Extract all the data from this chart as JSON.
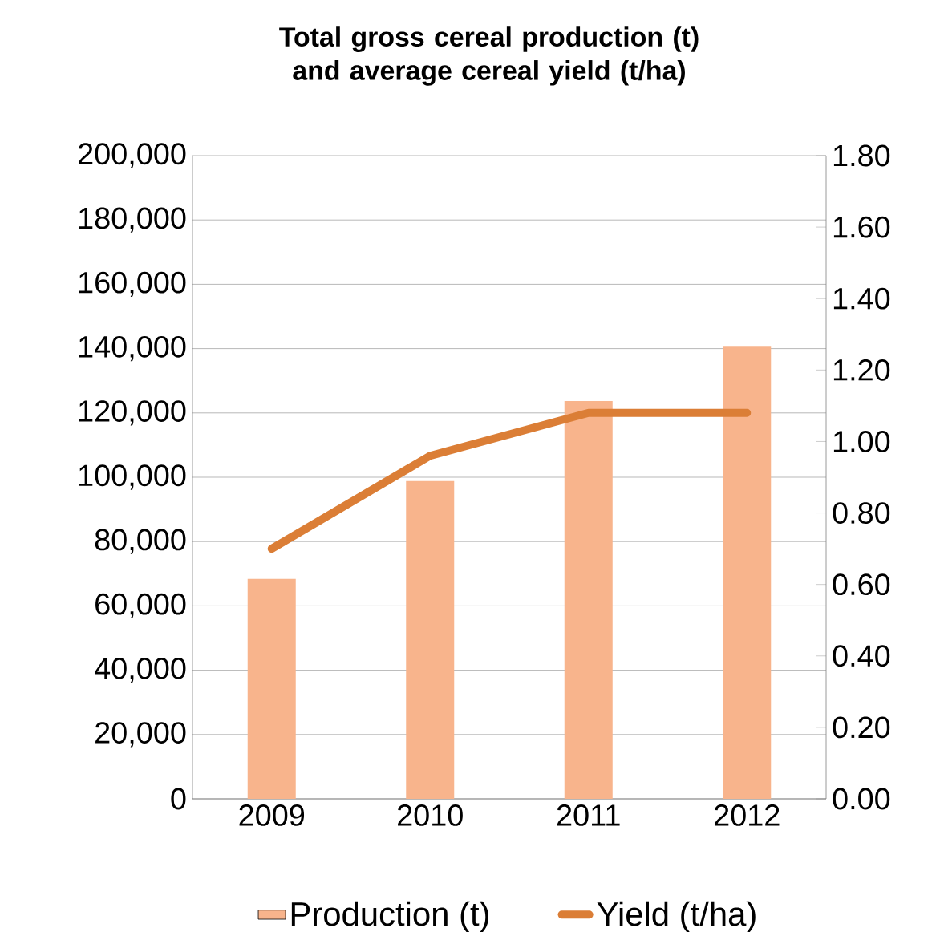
{
  "chart_data": {
    "type": "bar",
    "title": "Total gross cereal production (t) and average cereal yield (t/ha)",
    "categories": [
      "2009",
      "2010",
      "2011",
      "2012"
    ],
    "series": [
      {
        "name": "Production (t)",
        "color": "#f8b48c",
        "values": [
          68400,
          98800,
          123700,
          140600
        ]
      },
      {
        "name": "Yield (t/ha)",
        "type": "line",
        "axis": "y2",
        "color": "#db7e36",
        "line_style": "solid",
        "values": [
          0.7,
          0.96,
          1.08,
          1.08
        ]
      }
    ],
    "ylim": [
      0,
      200000
    ],
    "yticks": [
      0,
      {
        "value": 20000,
        "label": "20,000"
      },
      {
        "value": 40000,
        "label": "40,000"
      },
      {
        "value": 60000,
        "label": "60,000"
      },
      {
        "value": 80000,
        "label": "80,000"
      },
      {
        "value": 100000,
        "label": "100,000"
      },
      {
        "value": 120000,
        "label": "120,000"
      },
      {
        "value": 140000,
        "label": "140,000"
      },
      {
        "value": 160000,
        "label": "160,000"
      },
      {
        "value": 180000,
        "label": "180,000"
      },
      {
        "value": 200000,
        "label": "200,000"
      }
    ],
    "y2lim": [
      0,
      1.8
    ],
    "y2ticks": [
      {
        "value": 0,
        "label": "0.00"
      },
      {
        "value": 0.2,
        "label": "0.20"
      },
      {
        "value": 0.4,
        "label": "0.40"
      },
      {
        "value": 0.6,
        "label": "0.60"
      },
      {
        "value": 0.8,
        "label": "0.80"
      },
      {
        "value": 1.0,
        "label": "1.00"
      },
      {
        "value": 1.2,
        "label": "1.20"
      },
      {
        "value": 1.4,
        "label": "1.40"
      },
      {
        "value": 1.6,
        "label": "1.60"
      },
      {
        "value": 1.8,
        "label": "1.80"
      }
    ],
    "grid": "y",
    "legend": "bottom"
  }
}
